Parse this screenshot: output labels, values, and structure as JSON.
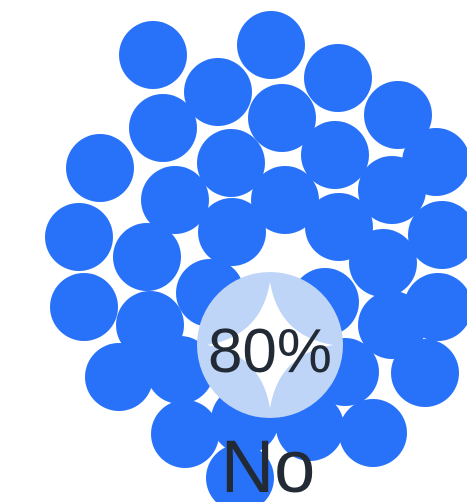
{
  "chart_data": {
    "type": "proportion-bubble",
    "value_percent": 80,
    "percent_label": "80%",
    "category_label": "No",
    "colors": {
      "bubble": "#2872fa",
      "highlight_circle": "#bfd5f7",
      "highlight_star": "#ffffff",
      "text": "#222b35",
      "background": "#ffffff"
    }
  }
}
